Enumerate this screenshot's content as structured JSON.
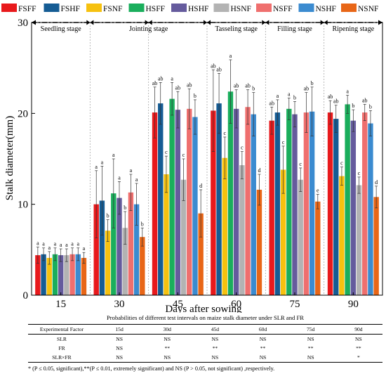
{
  "chart_data": {
    "type": "bar",
    "title": "",
    "xlabel": "Days after sowing",
    "ylabel": "Stalk diameter(mm)",
    "ylim": [
      0,
      30
    ],
    "yticks": [
      0,
      10,
      20,
      30
    ],
    "categories": [
      "15",
      "30",
      "45",
      "60",
      "75",
      "90"
    ],
    "legend_position": "top",
    "stages": [
      {
        "label": "Seedling stage"
      },
      {
        "label": "Jointing stage"
      },
      {
        "label": "Tasseling stage"
      },
      {
        "label": "Filling stage"
      },
      {
        "label": "Ripening stage"
      }
    ],
    "series": [
      {
        "name": "FSFF",
        "color": "#e8191c",
        "values": [
          4.4,
          10.0,
          20.1,
          20.3,
          19.2,
          20.1
        ],
        "errors": [
          0.9,
          3.7,
          2.8,
          4.5,
          1.5,
          1.3
        ],
        "letters": [
          "a",
          "a",
          "ab",
          "ab",
          "ab",
          "ab"
        ]
      },
      {
        "name": "FSHF",
        "color": "#155c94",
        "values": [
          4.5,
          10.4,
          21.1,
          21.1,
          20.1,
          19.4
        ],
        "errors": [
          0.7,
          3.8,
          2.3,
          3.3,
          1.4,
          1.5
        ],
        "letters": [
          "a",
          "a",
          "ab",
          "ab",
          "a",
          "ab"
        ]
      },
      {
        "name": "FSNF",
        "color": "#f6c10f",
        "values": [
          4.1,
          7.1,
          13.3,
          15.1,
          13.8,
          13.1
        ],
        "errors": [
          0.7,
          1.2,
          2.0,
          2.3,
          2.6,
          1.0
        ],
        "letters": [
          "a",
          "b",
          "c",
          "c",
          "c",
          "c"
        ]
      },
      {
        "name": "HSFF",
        "color": "#1aae5c",
        "values": [
          4.5,
          11.2,
          21.6,
          22.4,
          20.5,
          21.0
        ],
        "errors": [
          0.7,
          3.8,
          1.8,
          3.5,
          1.2,
          1.0
        ],
        "letters": [
          "a",
          "a",
          "a",
          "a",
          "a",
          "a"
        ]
      },
      {
        "name": "HSHF",
        "color": "#655b9d",
        "values": [
          4.4,
          10.7,
          20.4,
          20.5,
          19.9,
          19.2
        ],
        "errors": [
          0.7,
          1.8,
          2.0,
          2.1,
          1.4,
          1.2
        ],
        "letters": [
          "a",
          "a",
          "ab",
          "ab",
          "b",
          "b"
        ]
      },
      {
        "name": "HSNF",
        "color": "#b3b3b3",
        "values": [
          4.4,
          7.4,
          12.7,
          14.3,
          12.7,
          12.1
        ],
        "errors": [
          0.7,
          1.8,
          2.3,
          1.5,
          1.3,
          0.9
        ],
        "letters": [
          "a",
          "b",
          "c",
          "c",
          "c",
          "c"
        ]
      },
      {
        "name": "NSFF",
        "color": "#ef6f6e",
        "values": [
          4.5,
          11.3,
          20.5,
          20.7,
          20.1,
          20.1
        ],
        "errors": [
          0.7,
          2.0,
          2.2,
          1.9,
          2.2,
          0.9
        ],
        "letters": [
          "a",
          "a",
          "ab",
          "ab",
          "ab",
          "ab"
        ]
      },
      {
        "name": "NSHF",
        "color": "#3b8bd0",
        "values": [
          4.5,
          10.0,
          19.6,
          19.9,
          20.2,
          18.9
        ],
        "errors": [
          0.7,
          2.3,
          1.9,
          2.4,
          2.7,
          1.4
        ],
        "letters": [
          "a",
          "a",
          "b",
          "b",
          "b",
          "b"
        ]
      },
      {
        "name": "NSNF",
        "color": "#e86617",
        "values": [
          4.1,
          6.4,
          9.0,
          11.6,
          10.3,
          10.8
        ],
        "errors": [
          0.6,
          1.0,
          2.6,
          1.7,
          0.8,
          1.2
        ],
        "letters": [
          "a",
          "b",
          "d",
          "d",
          "e",
          "d"
        ]
      }
    ]
  },
  "table": {
    "title": "Probabilities of  different test intervals on maize stalk diameter under SLR and FR",
    "headers": [
      "Experimental Factor",
      "15d",
      "30d",
      "45d",
      "60d",
      "75d",
      "90d"
    ],
    "rows": [
      [
        "SLR",
        "NS",
        "NS",
        "NS",
        "NS",
        "NS",
        "NS"
      ],
      [
        "FR",
        "NS",
        "**",
        "**",
        "**",
        "**",
        "**"
      ],
      [
        "SLR×FR",
        "NS",
        "NS",
        "NS",
        "NS",
        "NS",
        "*"
      ]
    ],
    "footnote": "* (P ≤ 0.05, significant),**(P ≤ 0.01, extremely significant) and NS (P > 0.05, not significant) ,respectively."
  }
}
